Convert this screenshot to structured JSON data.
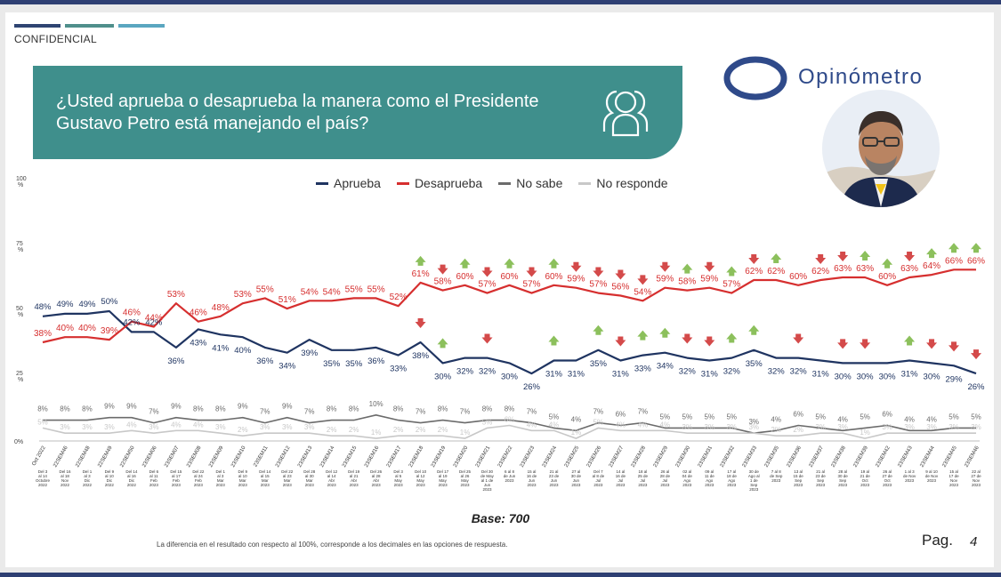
{
  "header": {
    "confidential": "CONFIDENCIAL",
    "question": "¿Usted aprueba o desaprueba la manera como el Presidente Gustavo Petro está manejando el país?",
    "brand": "Opinómetro"
  },
  "colors": {
    "aprueba": "#1f3461",
    "desaprueba": "#d62f2f",
    "no_sabe": "#6b6b6b",
    "no_responde": "#c8c8c8",
    "teal": "#3f8f8c",
    "strip1": "#2e4472",
    "strip2": "#4f8f8b",
    "strip3": "#5aa6c0",
    "up": "#8cc05c",
    "down": "#d44a4a"
  },
  "chart_data": {
    "type": "line",
    "title": "",
    "ylabel": "%",
    "ylim": [
      0,
      100
    ],
    "y_ticks": [
      "0%",
      "25 %",
      "50 %",
      "75 %",
      "100 %"
    ],
    "categories": [
      "Oct 2022",
      "22SEM46",
      "22SEM48",
      "22SEM49",
      "22SEM50",
      "23SEM06",
      "23SEM07",
      "23SEM08",
      "23SEM09",
      "23SEM10",
      "23SEM11",
      "23SEM12",
      "23SEM13",
      "23SEM14",
      "23SEM15",
      "23SEM16",
      "23SEM17",
      "23SEM18",
      "23SEM19",
      "23SEM20",
      "23SEM21",
      "23SEM22",
      "23SEM23",
      "23SEM24",
      "23SEM25",
      "23SEM26",
      "23SEM27",
      "23SEM28",
      "23SEM29",
      "23SEM30",
      "23SEM31",
      "23SEM32",
      "23SEM33",
      "23SEM35",
      "23SEM36",
      "23SEM37",
      "23SEM38",
      "23SEM39",
      "23SEM42",
      "23SEM43",
      "23SEM44",
      "23SEM45",
      "23SEM46"
    ],
    "date_labels": [
      "Del 3 al 14 Octubre 2022",
      "Del 16 al 18 Nov 2022",
      "Del 1 al 3 Dic 2022",
      "Del 9 al 10 Dic 2022",
      "Del 14 al 16 Dic 2022",
      "Del 6 al 11 Feb 2023",
      "Del 15 al 17 Feb 2023",
      "Del 22 al 24 Feb 2023",
      "Del 1 al 3 Mar 2023",
      "Del 9 al 10 Mar 2023",
      "Del 14 al 15 Mar 2023",
      "Del 22 al 23 Mar 2023",
      "Del 28 al 30 Mar 2023",
      "Del 12 al 14 Abr 2023",
      "Del 19 al 21 Abr 2023",
      "Del 26 al 28 Abr 2023",
      "Del 3 al 5 May 2023",
      "Del 10 al 12 May 2023",
      "Del 17 al 19 May 2023",
      "Del 25 al 26 May 2023",
      "Del 30 de May al 1 de Jun 2023",
      "6 al 8 de Jun 2023",
      "15 al 16 de Jun 2023",
      "21 al 23 de Jun 2023",
      "27 al 30 de Jun 2023",
      "Del 7 al 8 de Jul 2023",
      "14 al 16 de Jul 2023",
      "18 al 25 de Jul 2023",
      "26 al 28 de Jul 2023",
      "02 al 04 de Ago 2023",
      "09 al 11 de Ago 2023",
      "17 al 18 de Ago 2023",
      "30 de Ago al 1 de Sep 2023",
      "7 al 8 de Sep 2023",
      "13 al 15 de Sep 2023",
      "21 al 23 de Sep 2023",
      "28 al 30 de Sep 2023",
      "19 al 21 de Oct 2023",
      "26 al 27 de Oct 2023",
      "1 al 3 de Nov 2023",
      "9 al 10 de Nov 2023",
      "15 al 17 de Nov 2023",
      "22 al 27 de Nov 2023"
    ],
    "series": [
      {
        "name": "Aprueba",
        "values": [
          48,
          49,
          49,
          50,
          42,
          42,
          36,
          43,
          41,
          40,
          36,
          34,
          39,
          35,
          35,
          36,
          33,
          38,
          30,
          32,
          32,
          30,
          26,
          31,
          31,
          35,
          31,
          33,
          34,
          32,
          31,
          32,
          35,
          32,
          32,
          31,
          30,
          30,
          30,
          31,
          30,
          29,
          26
        ]
      },
      {
        "name": "Desaprueba",
        "values": [
          38,
          40,
          40,
          39,
          46,
          44,
          53,
          46,
          48,
          53,
          55,
          51,
          54,
          54,
          55,
          55,
          52,
          61,
          58,
          60,
          57,
          60,
          57,
          60,
          59,
          57,
          56,
          54,
          59,
          58,
          59,
          57,
          62,
          62,
          60,
          62,
          63,
          63,
          60,
          63,
          64,
          66,
          66
        ]
      },
      {
        "name": "No sabe",
        "values": [
          8,
          8,
          8,
          9,
          9,
          7,
          9,
          8,
          8,
          9,
          7,
          9,
          7,
          8,
          8,
          10,
          8,
          7,
          8,
          7,
          8,
          8,
          7,
          5,
          4,
          7,
          6,
          7,
          5,
          5,
          5,
          5,
          3,
          4,
          6,
          5,
          4,
          5,
          6,
          4,
          4,
          5,
          5
        ]
      },
      {
        "name": "No responde",
        "values": [
          5,
          3,
          3,
          3,
          4,
          3,
          4,
          4,
          3,
          2,
          3,
          3,
          3,
          2,
          2,
          1,
          2,
          2,
          2,
          1,
          5,
          6,
          4,
          4,
          1,
          5,
          4,
          4,
          4,
          3,
          3,
          3,
          3,
          2,
          2,
          3,
          3,
          1,
          3,
          3,
          3,
          3,
          3
        ]
      }
    ],
    "change_markers": [
      {
        "index": 17,
        "aprueba": "down",
        "desaprueba": "up"
      },
      {
        "index": 18,
        "aprueba": "up",
        "desaprueba": "down"
      },
      {
        "index": 19,
        "aprueba": null,
        "desaprueba": "up"
      },
      {
        "index": 20,
        "aprueba": "down",
        "desaprueba": "down"
      },
      {
        "index": 21,
        "aprueba": null,
        "desaprueba": "up"
      },
      {
        "index": 22,
        "aprueba": null,
        "desaprueba": "down"
      },
      {
        "index": 23,
        "aprueba": "up",
        "desaprueba": "up"
      },
      {
        "index": 24,
        "aprueba": null,
        "desaprueba": "down"
      },
      {
        "index": 25,
        "aprueba": "up",
        "desaprueba": "down"
      },
      {
        "index": 26,
        "aprueba": "down",
        "desaprueba": "down"
      },
      {
        "index": 27,
        "aprueba": "up",
        "desaprueba": "down"
      },
      {
        "index": 28,
        "aprueba": "up",
        "desaprueba": "down"
      },
      {
        "index": 29,
        "aprueba": "down",
        "desaprueba": "up"
      },
      {
        "index": 30,
        "aprueba": "down",
        "desaprueba": "down"
      },
      {
        "index": 31,
        "aprueba": "up",
        "desaprueba": "up"
      },
      {
        "index": 32,
        "aprueba": "up",
        "desaprueba": "down"
      },
      {
        "index": 33,
        "aprueba": null,
        "desaprueba": "up"
      },
      {
        "index": 34,
        "aprueba": "down",
        "desaprueba": null
      },
      {
        "index": 35,
        "aprueba": null,
        "desaprueba": "down"
      },
      {
        "index": 36,
        "aprueba": "down",
        "desaprueba": "down"
      },
      {
        "index": 37,
        "aprueba": "down",
        "desaprueba": "up"
      },
      {
        "index": 38,
        "aprueba": null,
        "desaprueba": "up"
      },
      {
        "index": 39,
        "aprueba": "up",
        "desaprueba": "down"
      },
      {
        "index": 40,
        "aprueba": "down",
        "desaprueba": "up"
      },
      {
        "index": 41,
        "aprueba": "down",
        "desaprueba": "up"
      },
      {
        "index": 42,
        "aprueba": "down",
        "desaprueba": "up"
      }
    ]
  },
  "footer": {
    "base": "Base: 700",
    "note": "La diferencia en el resultado con respecto al 100%, corresponde a los decimales en las opciones de respuesta.",
    "page_label": "Pag.",
    "page_number": "4"
  }
}
